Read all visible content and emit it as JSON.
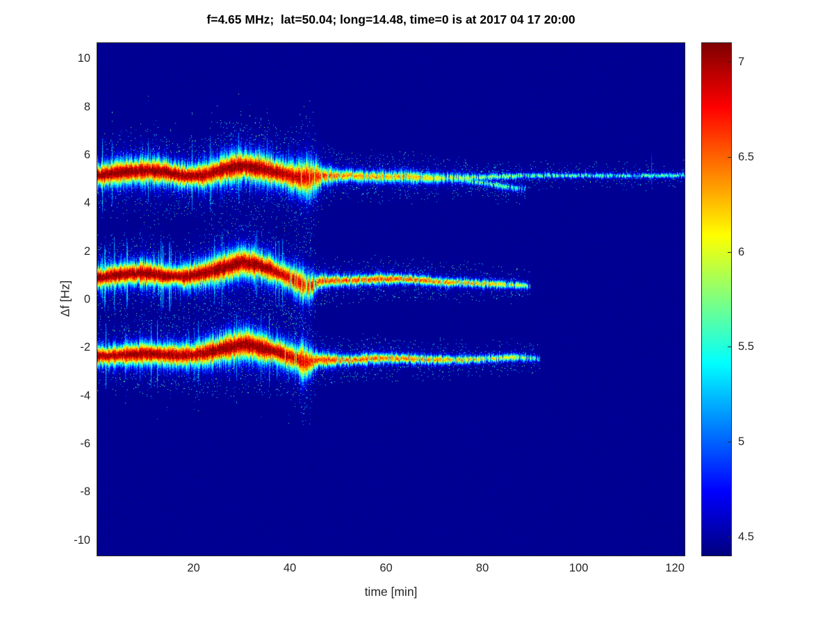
{
  "title": "f=4.65 MHz;  lat=50.04; long=14.48, time=0 is at 2017 04 17 20:00",
  "axes": {
    "xlabel": "time [min]",
    "ylabel": "Δf [Hz]",
    "xlim": [
      0,
      122
    ],
    "ylim": [
      -10.64,
      10.64
    ],
    "xticks": [
      20,
      40,
      60,
      80,
      100,
      120
    ],
    "yticks": [
      10,
      8,
      6,
      4,
      2,
      0,
      -2,
      -4,
      -6,
      -8,
      -10
    ]
  },
  "colorbar": {
    "min": 4.4,
    "max": 7.1,
    "ticks": [
      4.5,
      5,
      5.5,
      6,
      6.5,
      7
    ],
    "colormap": "jet"
  },
  "chart_data": {
    "type": "heatmap",
    "subtype": "doppler-spectrogram",
    "title": "f=4.65 MHz;  lat=50.04; long=14.48, time=0 is at 2017 04 17 20:00",
    "xlabel": "time [min]",
    "ylabel": "Δf [Hz]",
    "xlim": [
      0,
      122
    ],
    "ylim": [
      -10.64,
      10.64
    ],
    "clim": [
      4.4,
      7.1
    ],
    "colormap": "jet",
    "background_value": 4.45,
    "point_format": "[time_min, delta_f_hz, peak_intensity, sigma_hz]",
    "traces": [
      {
        "name": "upper-doppler-trace",
        "t_start": 0,
        "t_end": 122,
        "event": [
          42,
          45.5,
          0.8
        ],
        "points": [
          [
            0,
            5.15,
            7.1,
            0.3
          ],
          [
            5,
            5.3,
            7.1,
            0.32
          ],
          [
            10,
            5.35,
            7.1,
            0.35
          ],
          [
            14,
            5.3,
            7.1,
            0.33
          ],
          [
            18,
            5.15,
            7.05,
            0.3
          ],
          [
            22,
            5.15,
            7.0,
            0.32
          ],
          [
            26,
            5.4,
            7.1,
            0.38
          ],
          [
            30,
            5.55,
            7.1,
            0.4
          ],
          [
            34,
            5.45,
            7.1,
            0.38
          ],
          [
            38,
            5.25,
            7.0,
            0.35
          ],
          [
            41,
            5.1,
            6.9,
            0.4
          ],
          [
            44,
            5.05,
            6.8,
            0.5
          ],
          [
            47,
            5.15,
            6.6,
            0.25
          ],
          [
            52,
            5.15,
            6.4,
            0.15
          ],
          [
            58,
            5.1,
            6.35,
            0.16
          ],
          [
            64,
            5.1,
            6.25,
            0.16
          ],
          [
            70,
            5.05,
            6.1,
            0.14
          ],
          [
            76,
            5.05,
            5.95,
            0.1
          ],
          [
            82,
            5.1,
            5.8,
            0.08
          ],
          [
            90,
            5.15,
            5.75,
            0.07
          ],
          [
            105,
            5.15,
            5.65,
            0.06
          ],
          [
            122,
            5.15,
            5.65,
            0.06
          ]
        ]
      },
      {
        "name": "upper-trace-descending-branch",
        "t_start": 74,
        "t_end": 89,
        "event": null,
        "points": [
          [
            74,
            5.0,
            5.6,
            0.08
          ],
          [
            80,
            4.85,
            5.75,
            0.08
          ],
          [
            86,
            4.65,
            5.6,
            0.08
          ],
          [
            89,
            4.6,
            5.3,
            0.08
          ]
        ]
      },
      {
        "name": "middle-doppler-trace",
        "t_start": 0,
        "t_end": 90,
        "event": [
          41,
          44.5,
          0.6
        ],
        "points": [
          [
            0,
            0.9,
            7.1,
            0.28
          ],
          [
            5,
            1.05,
            7.1,
            0.3
          ],
          [
            10,
            1.1,
            7.1,
            0.32
          ],
          [
            14,
            1.0,
            7.1,
            0.3
          ],
          [
            18,
            0.95,
            7.05,
            0.3
          ],
          [
            22,
            1.1,
            7.1,
            0.34
          ],
          [
            26,
            1.3,
            7.1,
            0.38
          ],
          [
            30,
            1.55,
            7.1,
            0.4
          ],
          [
            33,
            1.45,
            7.1,
            0.38
          ],
          [
            36,
            1.25,
            7.0,
            0.34
          ],
          [
            39,
            1.0,
            6.9,
            0.3
          ],
          [
            42,
            0.7,
            6.8,
            0.4
          ],
          [
            44,
            0.5,
            6.7,
            0.42
          ],
          [
            46,
            0.75,
            6.6,
            0.18
          ],
          [
            52,
            0.8,
            6.6,
            0.14
          ],
          [
            58,
            0.85,
            6.6,
            0.14
          ],
          [
            64,
            0.85,
            6.5,
            0.13
          ],
          [
            70,
            0.75,
            6.5,
            0.12
          ],
          [
            76,
            0.7,
            6.4,
            0.11
          ],
          [
            82,
            0.65,
            6.2,
            0.1
          ],
          [
            87,
            0.6,
            6.05,
            0.09
          ],
          [
            90,
            0.55,
            5.6,
            0.08
          ]
        ]
      },
      {
        "name": "lower-doppler-trace",
        "t_start": 0,
        "t_end": 92,
        "event": [
          42,
          45,
          0.7
        ],
        "points": [
          [
            0,
            -2.35,
            7.0,
            0.26
          ],
          [
            5,
            -2.3,
            7.0,
            0.28
          ],
          [
            10,
            -2.25,
            7.1,
            0.3
          ],
          [
            15,
            -2.3,
            7.05,
            0.3
          ],
          [
            20,
            -2.3,
            7.0,
            0.32
          ],
          [
            24,
            -2.15,
            7.1,
            0.36
          ],
          [
            28,
            -1.95,
            7.1,
            0.4
          ],
          [
            31,
            -1.85,
            7.1,
            0.4
          ],
          [
            34,
            -2.0,
            7.1,
            0.38
          ],
          [
            37,
            -2.15,
            7.05,
            0.34
          ],
          [
            40,
            -2.35,
            6.9,
            0.34
          ],
          [
            43,
            -2.6,
            6.8,
            0.48
          ],
          [
            46,
            -2.5,
            6.6,
            0.2
          ],
          [
            52,
            -2.5,
            6.5,
            0.14
          ],
          [
            58,
            -2.45,
            6.5,
            0.14
          ],
          [
            64,
            -2.45,
            6.45,
            0.13
          ],
          [
            70,
            -2.5,
            6.4,
            0.12
          ],
          [
            76,
            -2.5,
            6.3,
            0.11
          ],
          [
            82,
            -2.45,
            6.15,
            0.1
          ],
          [
            87,
            -2.4,
            5.95,
            0.09
          ],
          [
            92,
            -2.45,
            5.5,
            0.08
          ]
        ]
      }
    ],
    "streaks": [
      {
        "t": 115,
        "f_min": 4.55,
        "f_max": 6.1,
        "value": 5.0
      }
    ]
  }
}
